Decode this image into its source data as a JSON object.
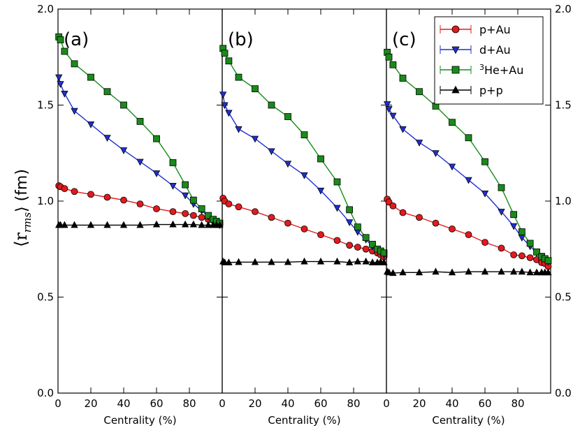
{
  "chart_data": {
    "type": "line",
    "ylabel_main": "⟨r",
    "ylabel_sub": "rms",
    "ylabel_unit": "⟩ (fm)",
    "ylim": [
      0.0,
      2.0
    ],
    "yticks": [
      "0.0",
      "0.5",
      "1.0",
      "1.5",
      "2.0"
    ],
    "xticks": [
      "0",
      "20",
      "40",
      "60",
      "80"
    ],
    "legend": {
      "placement": "top-right",
      "entries": [
        {
          "system": "pAu",
          "label_pre": "",
          "label_sup": "",
          "label_main": "p+Au"
        },
        {
          "system": "dAu",
          "label_pre": "",
          "label_sup": "",
          "label_main": "d+Au"
        },
        {
          "system": "HeAu",
          "label_pre": "",
          "label_sup": "3",
          "label_main": "He+Au"
        },
        {
          "system": "pp",
          "label_pre": "",
          "label_sup": "",
          "label_main": "p+p"
        }
      ]
    },
    "series_style": {
      "pAu": {
        "color": "#e31a1c",
        "marker": "circle"
      },
      "dAu": {
        "color": "#1f2fd0",
        "marker": "triangle-down"
      },
      "HeAu": {
        "color": "#1a8a1a",
        "marker": "square"
      },
      "pp": {
        "color": "#000000",
        "marker": "triangle-up"
      }
    },
    "panels": [
      {
        "tag": "(a)",
        "xlabel": "Centrality (%)",
        "xlim": [
          0,
          100
        ],
        "series": {
          "pAu": {
            "x": [
              0.5,
              1.5,
              4,
              10,
              20,
              30,
              40,
              50,
              60,
              70,
              77.5,
              82.5,
              87.5,
              91.5,
              94.5,
              96.5,
              98.5
            ],
            "y": [
              1.08,
              1.075,
              1.065,
              1.05,
              1.035,
              1.02,
              1.005,
              0.985,
              0.96,
              0.945,
              0.935,
              0.925,
              0.915,
              0.905,
              0.9,
              0.895,
              0.88
            ]
          },
          "dAu": {
            "x": [
              0.5,
              1.5,
              4,
              10,
              20,
              30,
              40,
              50,
              60,
              70,
              77.5,
              82.5,
              87.5,
              91.5,
              94.5,
              96.5,
              98.5
            ],
            "y": [
              1.645,
              1.61,
              1.56,
              1.47,
              1.4,
              1.33,
              1.265,
              1.205,
              1.145,
              1.08,
              1.03,
              0.985,
              0.95,
              0.92,
              0.9,
              0.89,
              0.875
            ]
          },
          "HeAu": {
            "x": [
              0.5,
              1.5,
              4,
              10,
              20,
              30,
              40,
              50,
              60,
              70,
              77.5,
              82.5,
              87.5,
              91.5,
              94.5,
              96.5,
              98.5
            ],
            "y": [
              1.855,
              1.84,
              1.78,
              1.715,
              1.645,
              1.57,
              1.5,
              1.415,
              1.325,
              1.2,
              1.085,
              1.005,
              0.96,
              0.925,
              0.905,
              0.895,
              0.885
            ]
          },
          "pp": {
            "x": [
              0.5,
              1.5,
              4,
              10,
              20,
              30,
              40,
              50,
              60,
              70,
              77.5,
              82.5,
              87.5,
              91.5,
              94.5,
              96.5,
              98.5
            ],
            "y": [
              0.875,
              0.875,
              0.875,
              0.875,
              0.875,
              0.875,
              0.875,
              0.875,
              0.878,
              0.878,
              0.878,
              0.878,
              0.875,
              0.875,
              0.875,
              0.875,
              0.875
            ]
          }
        }
      },
      {
        "tag": "(b)",
        "xlabel": "Centrality (%)",
        "xlim": [
          0,
          100
        ],
        "series": {
          "pAu": {
            "x": [
              0.5,
              1.5,
              4,
              10,
              20,
              30,
              40,
              50,
              60,
              70,
              77.5,
              82.5,
              87.5,
              91.5,
              94.5,
              96.5,
              98.5
            ],
            "y": [
              1.015,
              1.0,
              0.985,
              0.97,
              0.945,
              0.915,
              0.885,
              0.855,
              0.825,
              0.795,
              0.77,
              0.76,
              0.75,
              0.74,
              0.73,
              0.72,
              0.71
            ]
          },
          "dAu": {
            "x": [
              0.5,
              1.5,
              4,
              10,
              20,
              30,
              40,
              50,
              60,
              70,
              77.5,
              82.5,
              87.5,
              91.5,
              94.5,
              96.5,
              98.5
            ],
            "y": [
              1.555,
              1.5,
              1.46,
              1.375,
              1.325,
              1.26,
              1.195,
              1.135,
              1.055,
              0.965,
              0.89,
              0.84,
              0.8,
              0.765,
              0.75,
              0.735,
              0.72
            ]
          },
          "HeAu": {
            "x": [
              0.5,
              1.5,
              4,
              10,
              20,
              30,
              40,
              50,
              60,
              70,
              77.5,
              82.5,
              87.5,
              91.5,
              94.5,
              96.5,
              98.5
            ],
            "y": [
              1.795,
              1.77,
              1.73,
              1.645,
              1.585,
              1.5,
              1.44,
              1.345,
              1.22,
              1.1,
              0.955,
              0.865,
              0.81,
              0.775,
              0.75,
              0.74,
              0.73
            ]
          },
          "pp": {
            "x": [
              0.5,
              1.5,
              4,
              10,
              20,
              30,
              40,
              50,
              60,
              70,
              77.5,
              82.5,
              87.5,
              91.5,
              94.5,
              96.5,
              98.5
            ],
            "y": [
              0.685,
              0.68,
              0.68,
              0.682,
              0.682,
              0.682,
              0.682,
              0.685,
              0.685,
              0.685,
              0.68,
              0.685,
              0.685,
              0.68,
              0.68,
              0.683,
              0.68
            ]
          }
        }
      },
      {
        "tag": "(c)",
        "xlabel": "Centrality (%)",
        "xlim": [
          0,
          100
        ],
        "series": {
          "pAu": {
            "x": [
              0.5,
              1.5,
              4,
              10,
              20,
              30,
              40,
              50,
              60,
              70,
              77.5,
              82.5,
              87.5,
              91.5,
              94.5,
              96.5,
              98.5
            ],
            "y": [
              1.01,
              0.995,
              0.975,
              0.94,
              0.915,
              0.885,
              0.855,
              0.825,
              0.785,
              0.755,
              0.72,
              0.715,
              0.705,
              0.695,
              0.68,
              0.675,
              0.66
            ]
          },
          "dAu": {
            "x": [
              0.5,
              1.5,
              4,
              10,
              20,
              30,
              40,
              50,
              60,
              70,
              77.5,
              82.5,
              87.5,
              91.5,
              94.5,
              96.5,
              98.5
            ],
            "y": [
              1.505,
              1.48,
              1.445,
              1.375,
              1.305,
              1.25,
              1.18,
              1.11,
              1.04,
              0.945,
              0.87,
              0.81,
              0.765,
              0.73,
              0.715,
              0.7,
              0.685
            ]
          },
          "HeAu": {
            "x": [
              0.5,
              1.5,
              4,
              10,
              20,
              30,
              40,
              50,
              60,
              70,
              77.5,
              82.5,
              87.5,
              91.5,
              94.5,
              96.5,
              98.5
            ],
            "y": [
              1.775,
              1.75,
              1.71,
              1.64,
              1.57,
              1.495,
              1.41,
              1.33,
              1.205,
              1.07,
              0.93,
              0.84,
              0.78,
              0.735,
              0.71,
              0.7,
              0.69
            ]
          },
          "pp": {
            "x": [
              0.5,
              1.5,
              4,
              10,
              20,
              30,
              40,
              50,
              60,
              70,
              77.5,
              82.5,
              87.5,
              91.5,
              94.5,
              96.5,
              98.5
            ],
            "y": [
              0.632,
              0.628,
              0.625,
              0.628,
              0.628,
              0.632,
              0.628,
              0.632,
              0.632,
              0.632,
              0.632,
              0.632,
              0.628,
              0.628,
              0.628,
              0.628,
              0.628
            ]
          }
        }
      }
    ]
  }
}
